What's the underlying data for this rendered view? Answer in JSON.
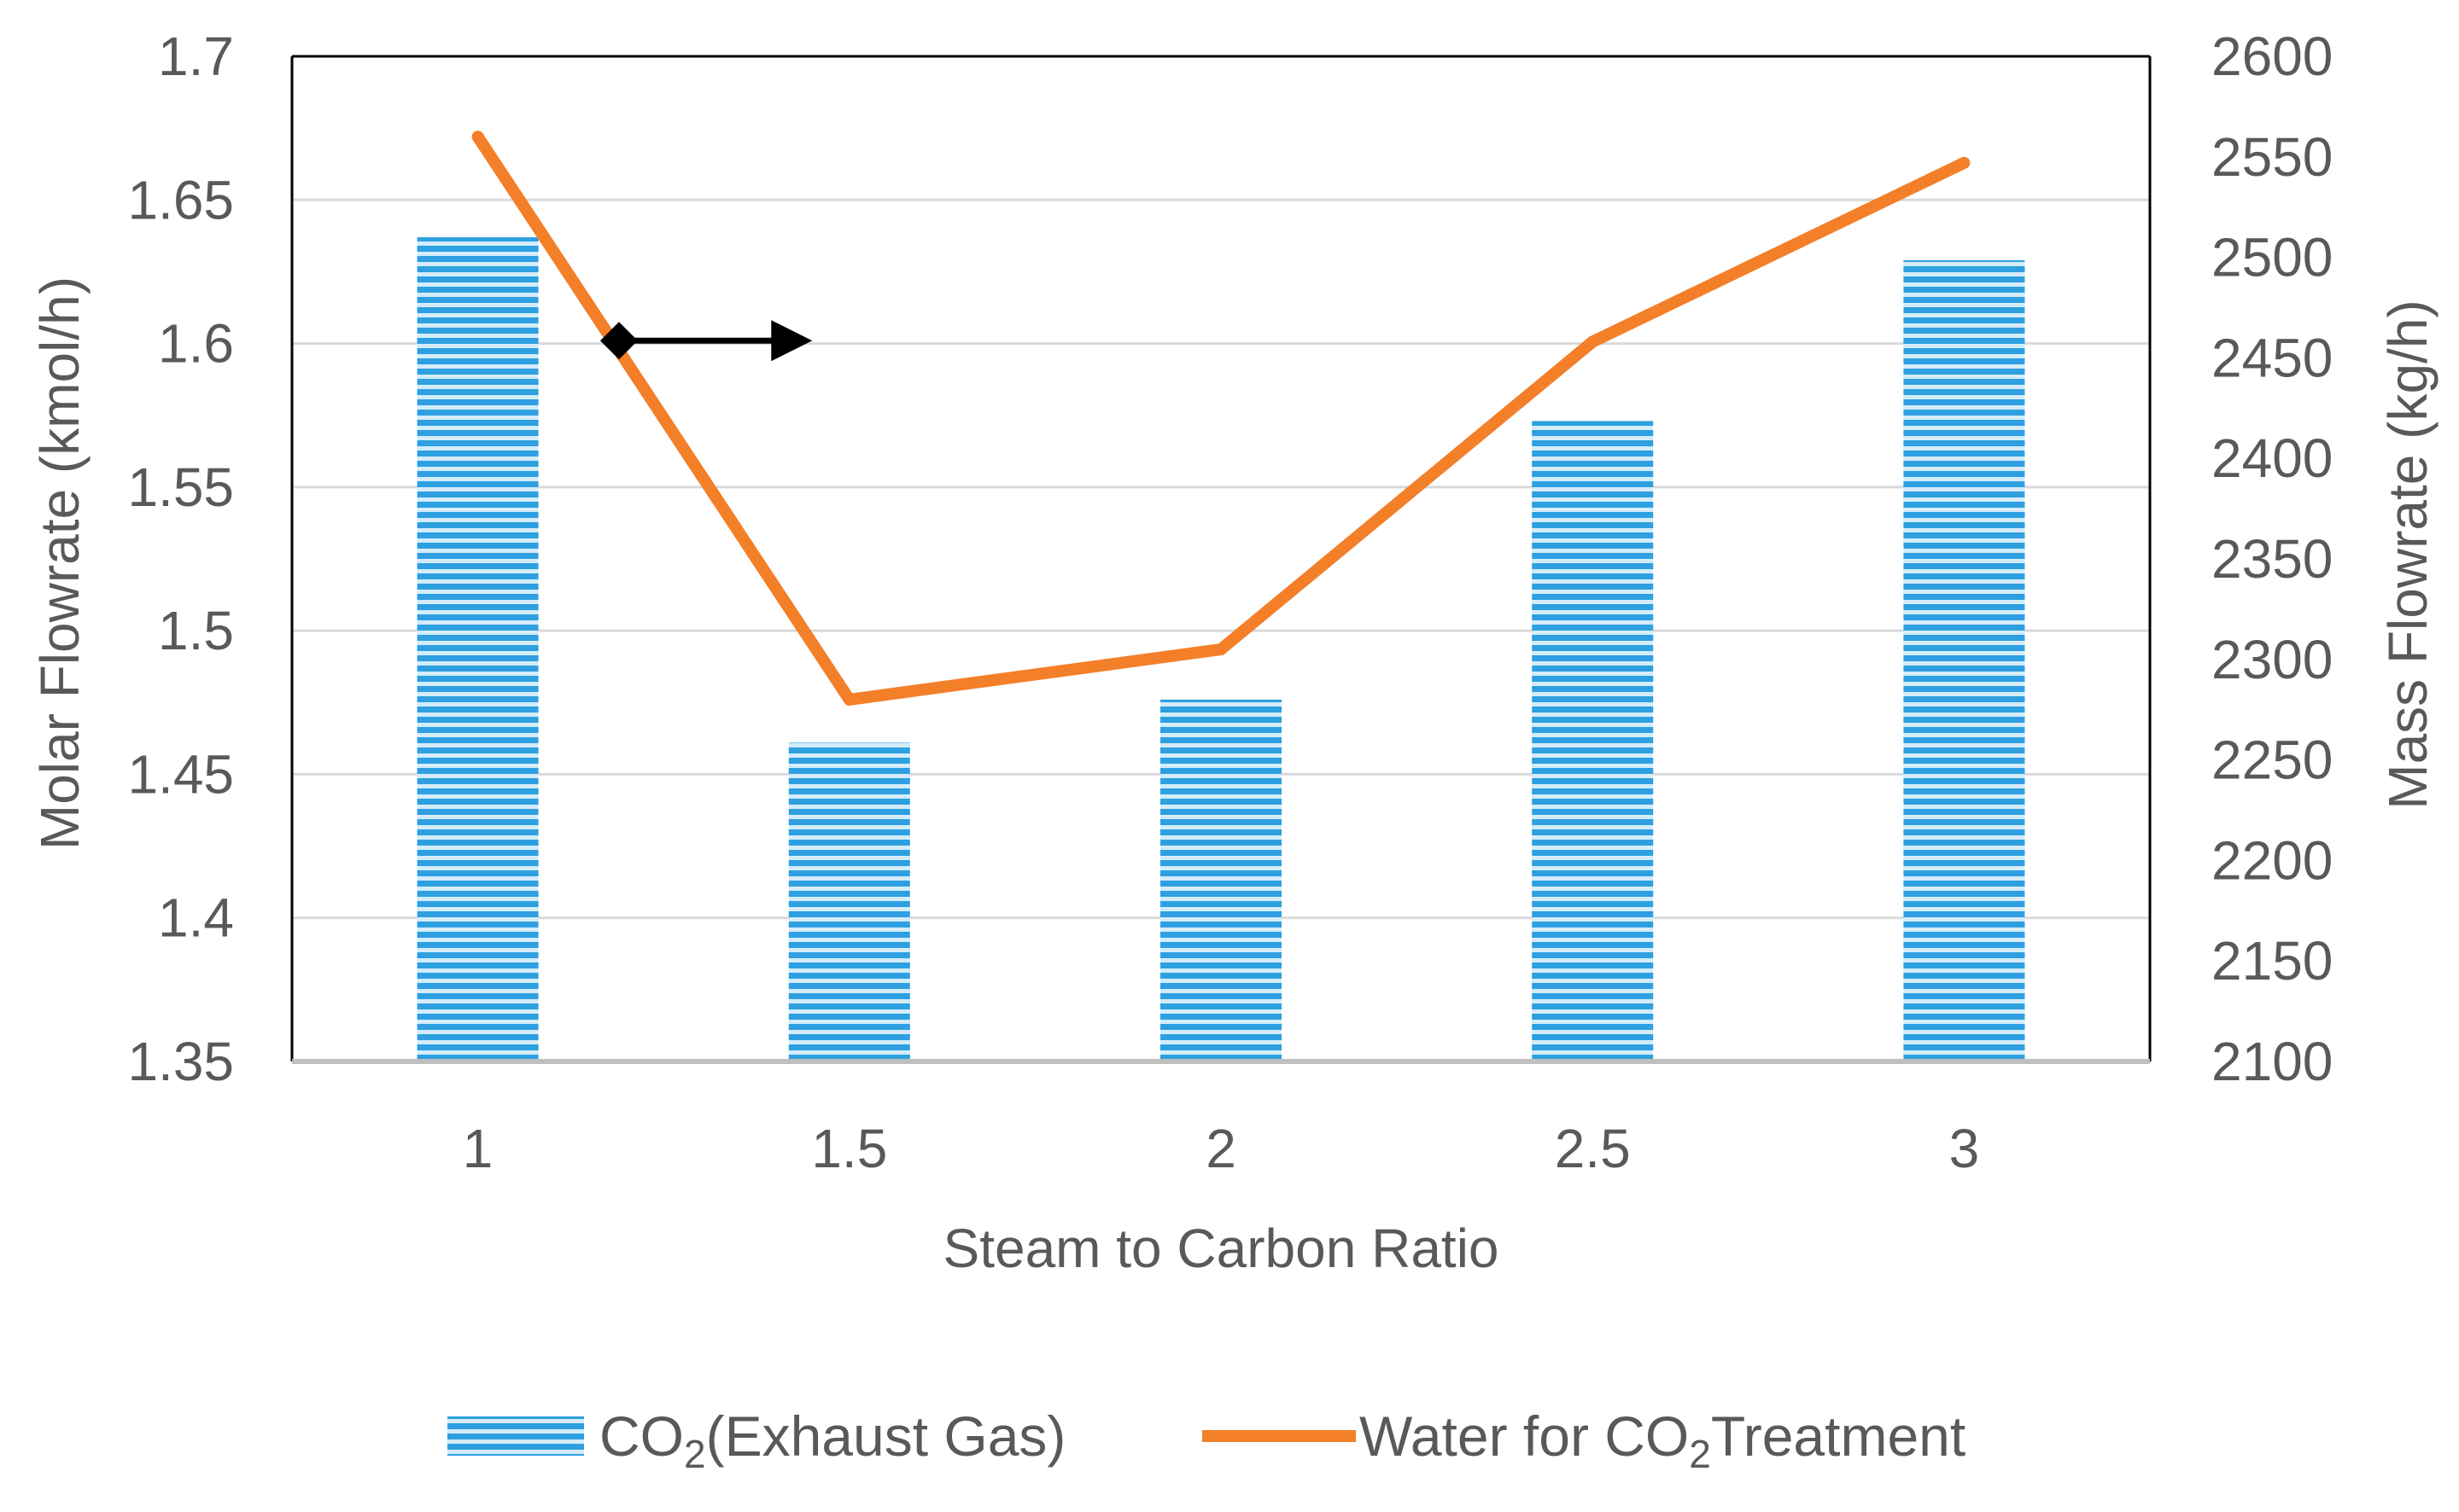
{
  "colors": {
    "bar": "#2e9fe0",
    "bar_light": "#d4ecfa",
    "line": "#f47f29",
    "grid": "#d9d9d9",
    "axis": "#000000",
    "text": "#595959",
    "arrow": "#000000"
  },
  "chart_data": {
    "type": "bar",
    "title": "",
    "categories": [
      "1",
      "1.5",
      "2",
      "2.5",
      "3"
    ],
    "xlabel": "Steam to Carbon Ratio",
    "ylabel": "Molar Flowrate (kmol/h)",
    "y2label": "Mass Flowrate (kg/h)",
    "ylim": [
      1.35,
      1.7
    ],
    "y2lim": [
      2100,
      2600
    ],
    "yticks": [
      "1.35",
      "1.4",
      "1.45",
      "1.5",
      "1.55",
      "1.6",
      "1.65",
      "1.7"
    ],
    "y2ticks": [
      "2100",
      "2150",
      "2200",
      "2250",
      "2300",
      "2350",
      "2400",
      "2450",
      "2500",
      "2550",
      "2600"
    ],
    "series": [
      {
        "name": "CO2(Exhaust Gas)",
        "legend_main": "CO",
        "legend_sub": "2",
        "legend_rest": "(Exhaust Gas)",
        "type": "bar",
        "axis": "left",
        "values": [
          1.637,
          1.461,
          1.476,
          1.573,
          1.629
        ]
      },
      {
        "name": "Water for CO2 Treatment",
        "legend_main": "Water for CO",
        "legend_sub": "2",
        "legend_rest": "Treatment",
        "type": "line",
        "axis": "right",
        "values": [
          2560,
          2280,
          2305,
          2458,
          2547
        ]
      }
    ],
    "annotation": {
      "type": "arrow",
      "meaning": "line series uses right axis",
      "from": [
        1.19,
        1.601
      ],
      "to": [
        1.45,
        1.601
      ]
    },
    "grid": true,
    "legend_position": "bottom"
  }
}
